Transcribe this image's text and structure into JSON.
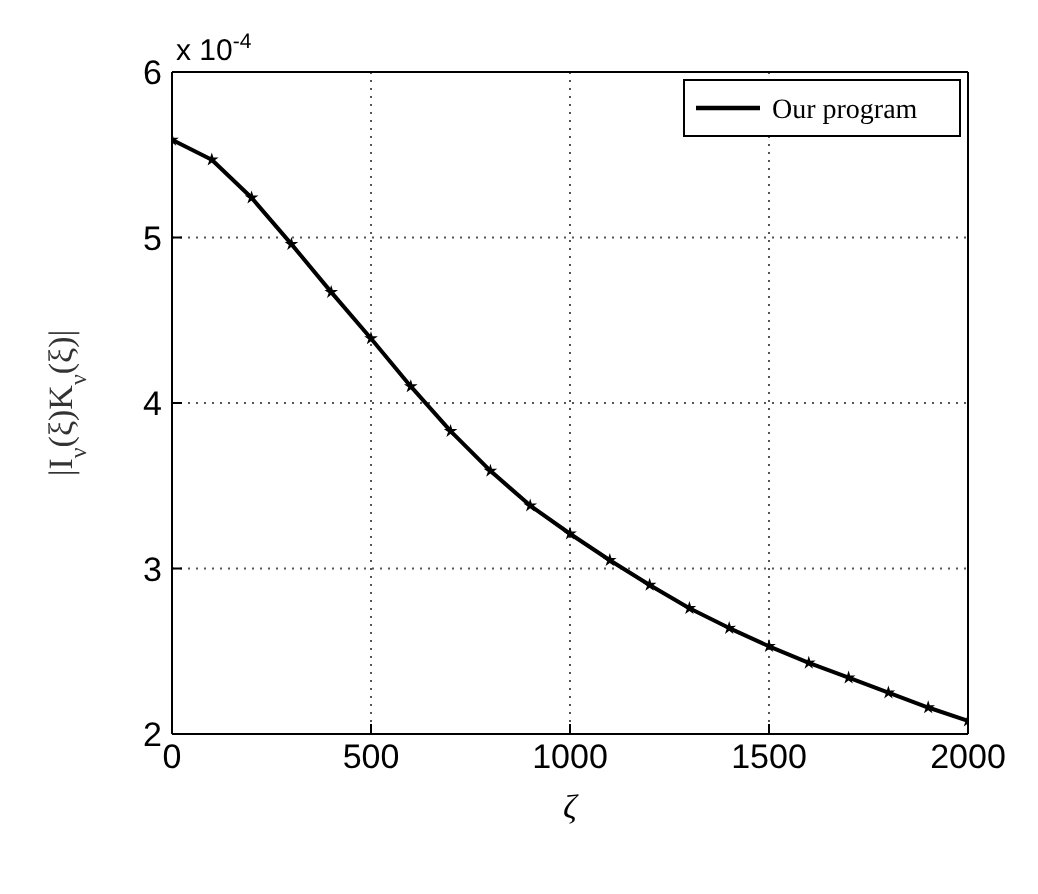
{
  "chart_data": {
    "type": "line",
    "xlabel": "ζ",
    "ylabel": "|I$_{ν}$(ξ)K$_{ν}$(ξ)|",
    "annotations": [
      "x 10$^{-4}$"
    ],
    "x": [
      0,
      100,
      200,
      300,
      400,
      500,
      600,
      700,
      800,
      900,
      1000,
      1100,
      1200,
      1300,
      1400,
      1500,
      1600,
      1700,
      1800,
      1900,
      2000
    ],
    "series": [
      {
        "name": "Our program",
        "color": "#000000",
        "line_style": "solid",
        "values": [
          5.59,
          5.47,
          5.24,
          4.96,
          4.67,
          4.39,
          4.1,
          3.83,
          3.59,
          3.38,
          3.21,
          3.05,
          2.9,
          2.76,
          2.64,
          2.53,
          2.43,
          2.34,
          2.25,
          2.16,
          2.08
        ]
      },
      {
        "type": "scatter",
        "color": "#000000",
        "marker": "star",
        "values": [
          5.59,
          5.47,
          5.24,
          4.96,
          4.67,
          4.39,
          4.1,
          3.83,
          3.59,
          3.38,
          3.21,
          3.05,
          2.9,
          2.76,
          2.64,
          2.53,
          2.43,
          2.34,
          2.25,
          2.16,
          2.08
        ]
      }
    ],
    "xlim": [
      0,
      2000
    ],
    "xticks": [
      0,
      500,
      1000,
      1500,
      2000
    ],
    "ylim": [
      2,
      6
    ],
    "yticks": [
      2,
      3,
      4,
      5,
      6
    ],
    "grid": true,
    "legend": "top right"
  }
}
